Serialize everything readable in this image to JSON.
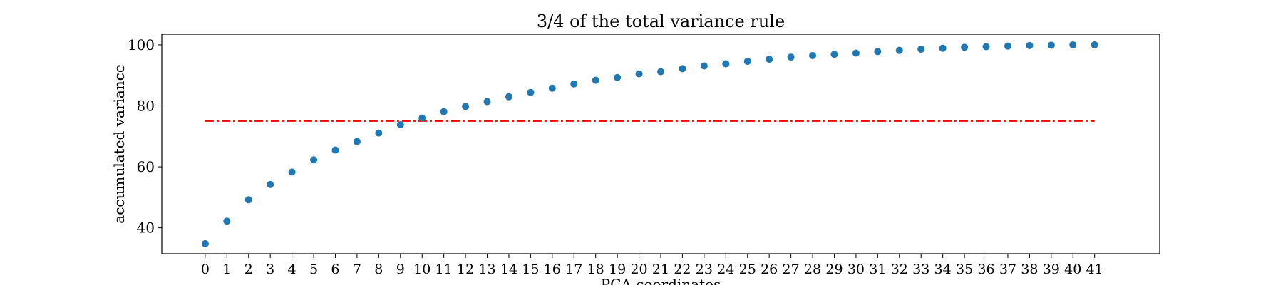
{
  "chart_data": {
    "type": "scatter",
    "title": "3/4 of the total variance rule",
    "xlabel": "PCA coordinates",
    "ylabel": "accumulated variance",
    "xlim": [
      -2,
      44
    ],
    "ylim": [
      31.5,
      103.5
    ],
    "xticks": [
      0,
      1,
      2,
      3,
      4,
      5,
      6,
      7,
      8,
      9,
      10,
      11,
      12,
      13,
      14,
      15,
      16,
      17,
      18,
      19,
      20,
      21,
      22,
      23,
      24,
      25,
      26,
      27,
      28,
      29,
      30,
      31,
      32,
      33,
      34,
      35,
      36,
      37,
      38,
      39,
      40,
      41
    ],
    "yticks": [
      40,
      60,
      80,
      100
    ],
    "grid": false,
    "series": [
      {
        "x": [
          0,
          1,
          2,
          3,
          4,
          5,
          6,
          7,
          8,
          9,
          10,
          11,
          12,
          13,
          14,
          15,
          16,
          17,
          18,
          19,
          20,
          21,
          22,
          23,
          24,
          25,
          26,
          27,
          28,
          29,
          30,
          31,
          32,
          33,
          34,
          35,
          36,
          37,
          38,
          39,
          40,
          41
        ],
        "y": [
          34.8,
          42.2,
          49.2,
          54.2,
          58.3,
          62.3,
          65.5,
          68.3,
          71.1,
          73.8,
          76.0,
          78.1,
          79.8,
          81.4,
          83.0,
          84.4,
          85.8,
          87.2,
          88.4,
          89.3,
          90.5,
          91.2,
          92.2,
          93.1,
          93.8,
          94.6,
          95.3,
          96.0,
          96.5,
          96.9,
          97.3,
          97.8,
          98.2,
          98.6,
          98.9,
          99.2,
          99.4,
          99.6,
          99.8,
          99.9,
          100.0,
          100.0
        ],
        "color": "#1f77b4"
      }
    ],
    "threshold": {
      "y": 75,
      "x_start": 0,
      "x_end": 41,
      "style": "dash-dot",
      "color": "#ff0000"
    }
  }
}
